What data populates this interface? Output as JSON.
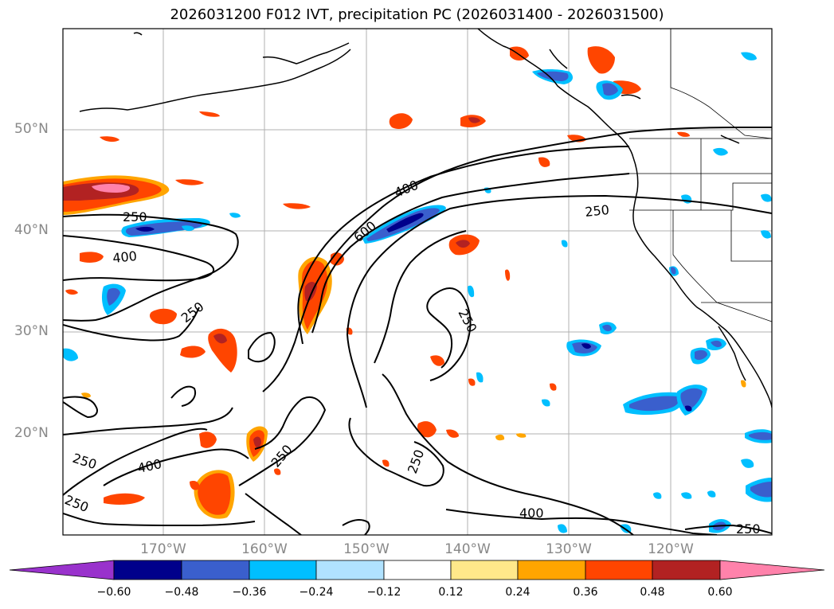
{
  "title": "2026031200 F012 IVT, precipitation PC (2026031400 - 2026031500)",
  "lat_labels": [
    "50°N",
    "40°N",
    "30°N",
    "20°N"
  ],
  "lon_labels": [
    "170°W",
    "160°W",
    "150°W",
    "140°W",
    "130°W",
    "120°W"
  ],
  "ivt_contour_labels": [
    "250",
    "250",
    "250",
    "250",
    "250",
    "250",
    "250",
    "250",
    "400",
    "400",
    "400",
    "400",
    "600"
  ],
  "colorbar": {
    "ticks": [
      "−0.60",
      "−0.48",
      "−0.36",
      "−0.24",
      "−0.12",
      "0.12",
      "0.24",
      "0.36",
      "0.48",
      "0.60"
    ],
    "colors": [
      "#9932cc",
      "#00008b",
      "#3a5fcd",
      "#00bfff",
      "#b0e2ff",
      "#ffffff",
      "#ffe88a",
      "#ffa500",
      "#ff4500",
      "#b22222",
      "#ff82ab"
    ]
  },
  "colors": {
    "pos_low": "#ffe88a",
    "pos_mid": "#ffa500",
    "pos_high": "#ff4500",
    "pos_higher": "#b22222",
    "pos_max": "#ff82ab",
    "neg_low": "#b0e2ff",
    "neg_mid": "#00bfff",
    "neg_high": "#3a5fcd",
    "neg_max": "#00008b"
  }
}
